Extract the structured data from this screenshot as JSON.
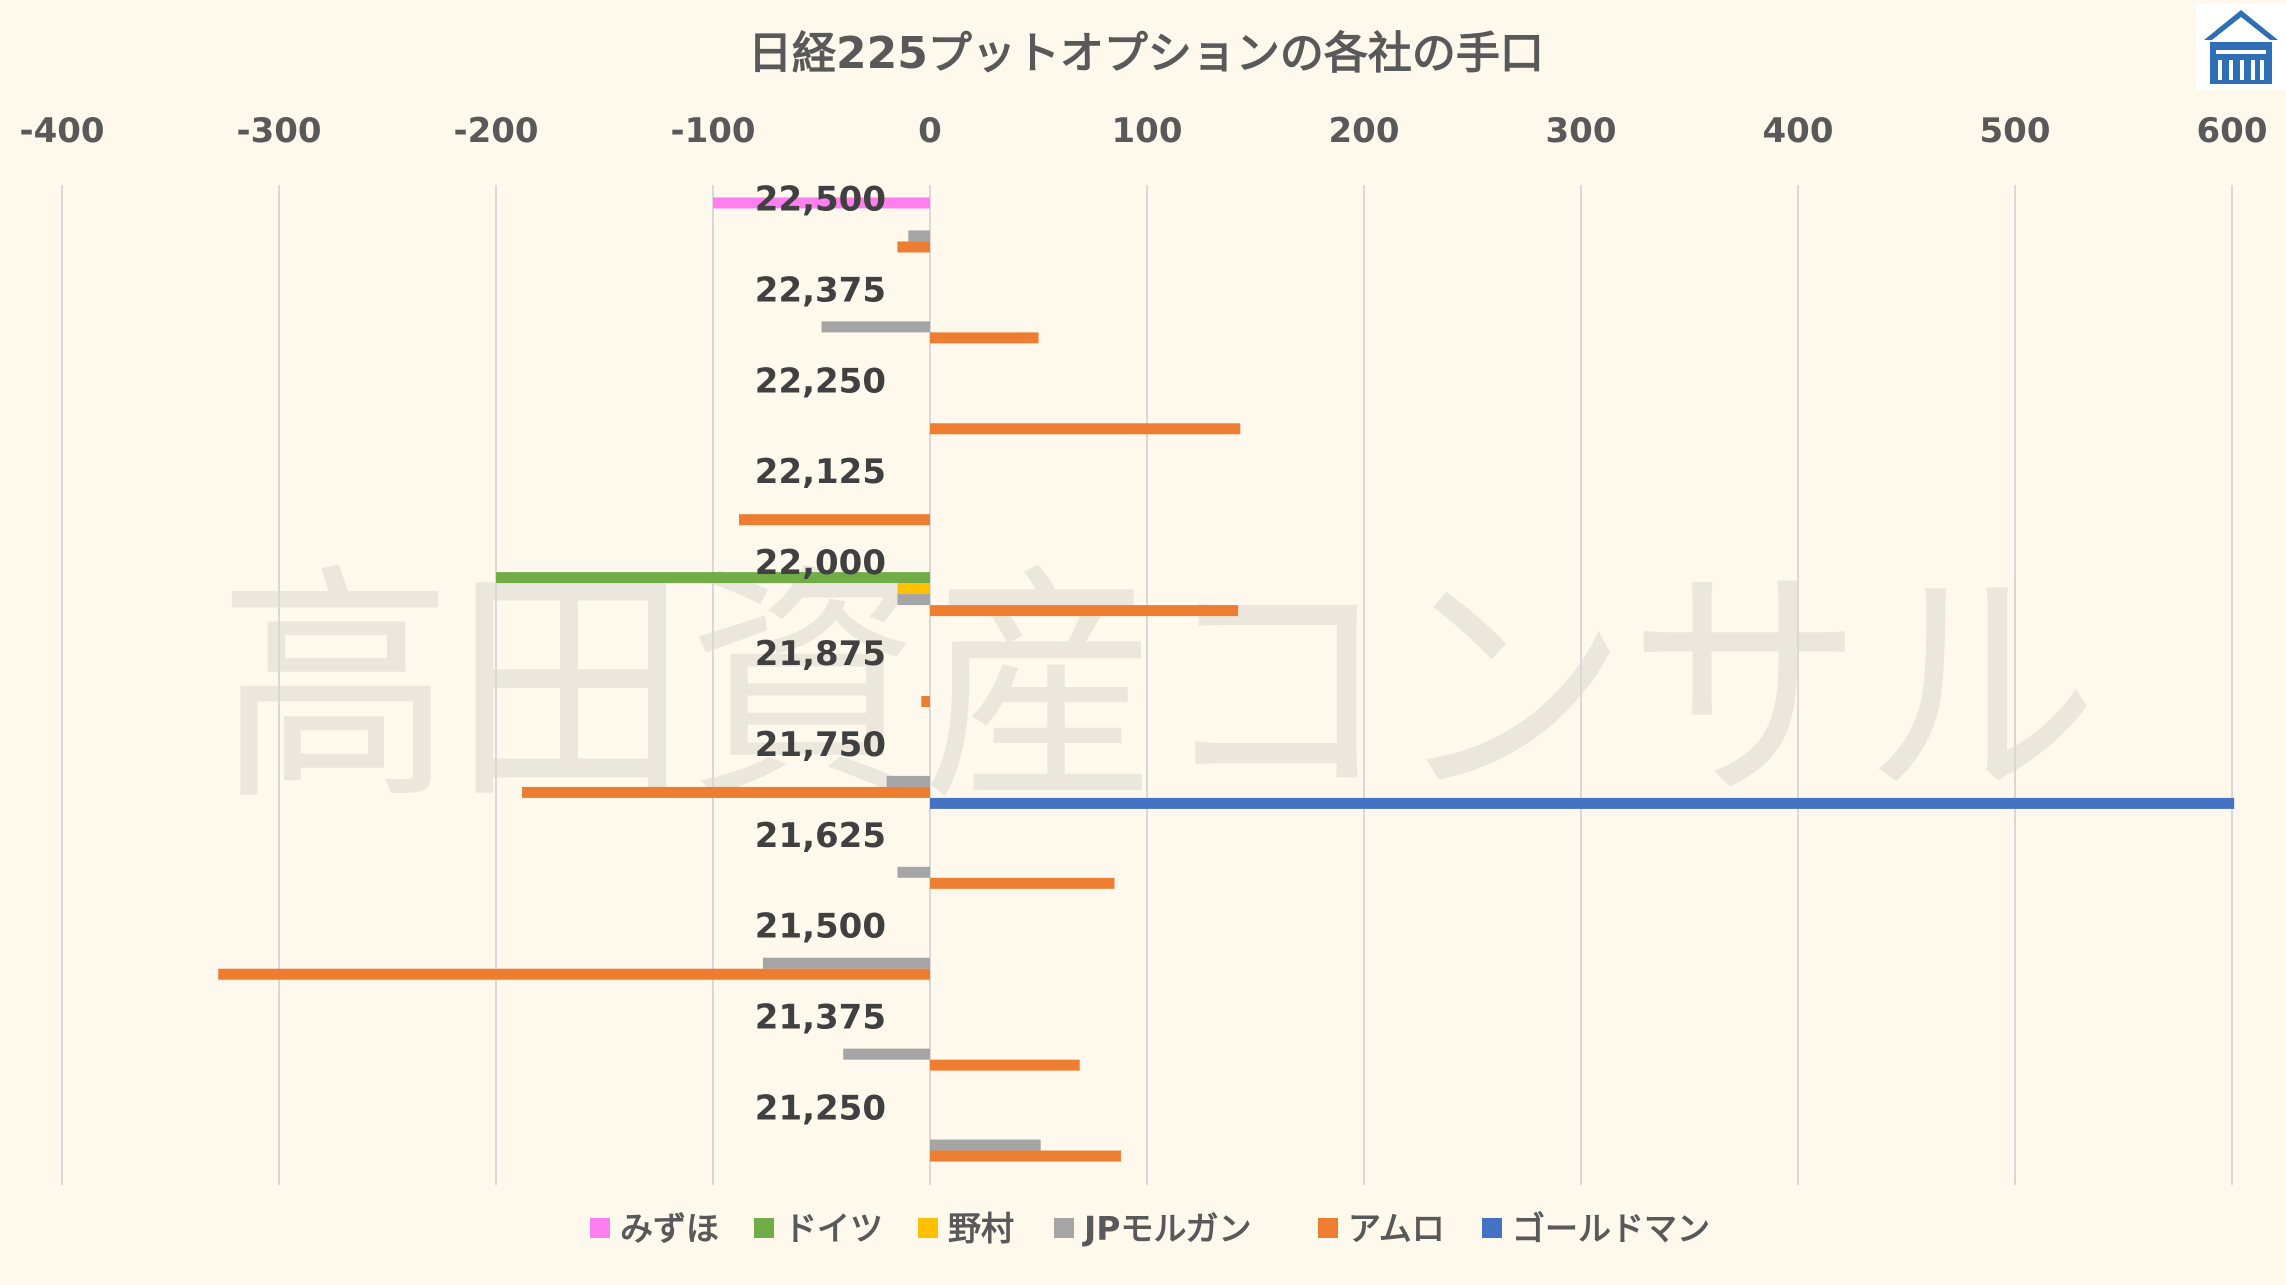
{
  "watermark": "高田資産コンサル",
  "chart_data": {
    "type": "bar",
    "orientation": "horizontal",
    "title": "日経225プットオプションの各社の手口",
    "xlim": [
      -400,
      600
    ],
    "x_ticks": [
      "-400",
      "-300",
      "-200",
      "-100",
      "0",
      "100",
      "200",
      "300",
      "400",
      "500",
      "600"
    ],
    "tick_values": [
      -400,
      -300,
      -200,
      -100,
      0,
      100,
      200,
      300,
      400,
      500,
      600
    ],
    "x_axis_position": "top",
    "grid": true,
    "legend_position": "bottom",
    "categories": [
      "22,500",
      "22,375",
      "22,250",
      "22,125",
      "22,000",
      "21,875",
      "21,750",
      "21,625",
      "21,500",
      "21,375",
      "21,250"
    ],
    "series": [
      {
        "name": "みずほ",
        "color": "#ff7ff0",
        "values": [
          -100,
          null,
          null,
          null,
          null,
          null,
          null,
          null,
          null,
          null,
          null
        ]
      },
      {
        "name": "ドイツ",
        "color": "#70ad47",
        "values": [
          null,
          null,
          null,
          null,
          -200,
          null,
          null,
          null,
          null,
          null,
          null
        ]
      },
      {
        "name": "野村",
        "color": "#ffc000",
        "values": [
          null,
          null,
          null,
          null,
          -15,
          null,
          null,
          null,
          null,
          null,
          null
        ]
      },
      {
        "name": "JPモルガン",
        "color": "#a5a5a5",
        "values": [
          -10,
          -50,
          null,
          null,
          -15,
          null,
          -20,
          -15,
          -77,
          -40,
          51
        ]
      },
      {
        "name": "アムロ",
        "color": "#ed7d31",
        "values": [
          -15,
          50,
          143,
          -88,
          142,
          -4,
          -188,
          85,
          -328,
          69,
          88
        ]
      },
      {
        "name": "ゴールドマン",
        "color": "#4472c4",
        "values": [
          null,
          null,
          null,
          null,
          null,
          null,
          601,
          null,
          null,
          null,
          null
        ]
      }
    ]
  }
}
